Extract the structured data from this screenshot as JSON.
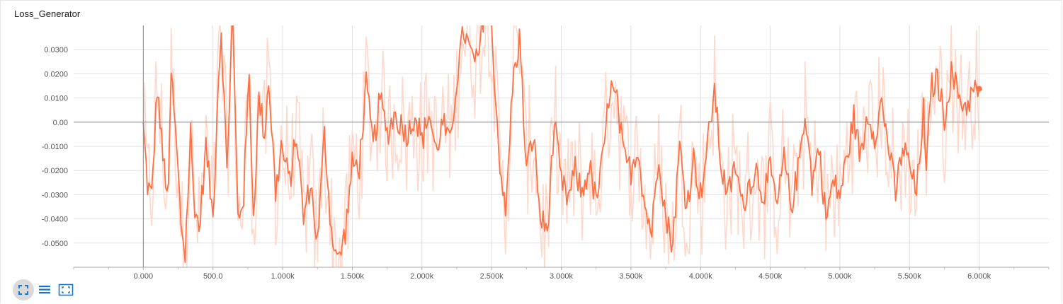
{
  "chart_data": {
    "type": "line",
    "title": "Loss_Generator",
    "xlabel": "",
    "ylabel": "",
    "xlim": [
      -500,
      6500
    ],
    "ylim": [
      -0.06,
      0.04
    ],
    "x_ticks": [
      0,
      500,
      1000,
      1500,
      2000,
      2500,
      3000,
      3500,
      4000,
      4500,
      5000,
      5500,
      6000
    ],
    "x_tick_labels": [
      "0.000",
      "500.0",
      "1.000k",
      "1.500k",
      "2.000k",
      "2.500k",
      "3.000k",
      "3.500k",
      "4.000k",
      "4.500k",
      "5.000k",
      "5.500k",
      "6.000k"
    ],
    "y_ticks": [
      0.03,
      0.02,
      0.01,
      0.0,
      -0.01,
      -0.02,
      -0.03,
      -0.04,
      -0.05
    ],
    "y_tick_labels": [
      "0.0300",
      "0.0200",
      "0.0100",
      "0.00",
      "-0.0100",
      "-0.0200",
      "-0.0300",
      "-0.0400",
      "-0.0500"
    ],
    "grid": true,
    "series": [
      {
        "smoothed_color": "#ff7043",
        "raw_color": "#ffd8cc",
        "x_start": 0,
        "x_step": 10,
        "end_value": 0.0138,
        "keypoints": [
          [
            0,
            -0.002
          ],
          [
            30,
            -0.026
          ],
          [
            60,
            -0.031
          ],
          [
            100,
            0.015
          ],
          [
            140,
            -0.015
          ],
          [
            180,
            -0.031
          ],
          [
            200,
            0.021
          ],
          [
            240,
            -0.012
          ],
          [
            270,
            -0.041
          ],
          [
            300,
            -0.055
          ],
          [
            340,
            -0.004
          ],
          [
            360,
            -0.03
          ],
          [
            400,
            -0.045
          ],
          [
            450,
            -0.01
          ],
          [
            500,
            -0.04
          ],
          [
            540,
            0.02
          ],
          [
            560,
            0.038
          ],
          [
            600,
            -0.02
          ],
          [
            640,
            0.045
          ],
          [
            680,
            -0.04
          ],
          [
            720,
            -0.03
          ],
          [
            760,
            0.02
          ],
          [
            790,
            -0.04
          ],
          [
            830,
            0.01
          ],
          [
            870,
            -0.005
          ],
          [
            900,
            0.018
          ],
          [
            950,
            -0.03
          ],
          [
            990,
            -0.01
          ],
          [
            1050,
            -0.025
          ],
          [
            1100,
            -0.005
          ],
          [
            1150,
            -0.04
          ],
          [
            1200,
            -0.025
          ],
          [
            1250,
            -0.05
          ],
          [
            1300,
            -0.005
          ],
          [
            1350,
            -0.045
          ],
          [
            1400,
            -0.058
          ],
          [
            1450,
            -0.045
          ],
          [
            1500,
            -0.018
          ],
          [
            1550,
            -0.018
          ],
          [
            1600,
            0.015
          ],
          [
            1650,
            -0.01
          ],
          [
            1700,
            0.01
          ],
          [
            1750,
            -0.005
          ],
          [
            1800,
            0.003
          ],
          [
            1900,
            -0.005
          ],
          [
            1950,
            0.004
          ],
          [
            2000,
            -0.008
          ],
          [
            2050,
            0.004
          ],
          [
            2100,
            -0.012
          ],
          [
            2150,
            0.0
          ],
          [
            2200,
            -0.01
          ],
          [
            2250,
            0.018
          ],
          [
            2300,
            0.038
          ],
          [
            2350,
            0.028
          ],
          [
            2400,
            0.024
          ],
          [
            2450,
            0.048
          ],
          [
            2500,
            0.039
          ],
          [
            2550,
            -0.01
          ],
          [
            2600,
            -0.04
          ],
          [
            2650,
            0.015
          ],
          [
            2700,
            0.035
          ],
          [
            2750,
            -0.02
          ],
          [
            2800,
            -0.005
          ],
          [
            2850,
            -0.04
          ],
          [
            2900,
            -0.045
          ],
          [
            2950,
            -0.001
          ],
          [
            3000,
            -0.025
          ],
          [
            3050,
            -0.032
          ],
          [
            3100,
            -0.02
          ],
          [
            3150,
            -0.03
          ],
          [
            3200,
            -0.018
          ],
          [
            3250,
            -0.033
          ],
          [
            3300,
            -0.015
          ],
          [
            3350,
            0.015
          ],
          [
            3400,
            0.008
          ],
          [
            3450,
            -0.015
          ],
          [
            3500,
            -0.02
          ],
          [
            3550,
            -0.01
          ],
          [
            3600,
            -0.035
          ],
          [
            3650,
            -0.045
          ],
          [
            3700,
            -0.012
          ],
          [
            3750,
            -0.04
          ],
          [
            3800,
            -0.05
          ],
          [
            3850,
            -0.01
          ],
          [
            3900,
            -0.035
          ],
          [
            3950,
            -0.015
          ],
          [
            4000,
            -0.03
          ],
          [
            4050,
            -0.01
          ],
          [
            4100,
            0.014
          ],
          [
            4150,
            -0.02
          ],
          [
            4200,
            -0.03
          ],
          [
            4250,
            -0.018
          ],
          [
            4300,
            -0.035
          ],
          [
            4350,
            -0.025
          ],
          [
            4400,
            -0.02
          ],
          [
            4450,
            -0.03
          ],
          [
            4500,
            -0.02
          ],
          [
            4550,
            -0.035
          ],
          [
            4600,
            -0.015
          ],
          [
            4650,
            -0.035
          ],
          [
            4700,
            -0.02
          ],
          [
            4750,
            0.005
          ],
          [
            4800,
            -0.025
          ],
          [
            4850,
            -0.01
          ],
          [
            4900,
            -0.04
          ],
          [
            4950,
            -0.025
          ],
          [
            5000,
            -0.03
          ],
          [
            5050,
            -0.015
          ],
          [
            5100,
            0.002
          ],
          [
            5150,
            -0.015
          ],
          [
            5200,
            0.004
          ],
          [
            5250,
            -0.005
          ],
          [
            5300,
            0.008
          ],
          [
            5350,
            -0.01
          ],
          [
            5400,
            -0.03
          ],
          [
            5450,
            -0.01
          ],
          [
            5500,
            -0.018
          ],
          [
            5550,
            -0.03
          ],
          [
            5600,
            0.005
          ],
          [
            5620,
            -0.025
          ],
          [
            5650,
            0.014
          ],
          [
            5700,
            0.018
          ],
          [
            5750,
            0.002
          ],
          [
            5800,
            0.02
          ],
          [
            5850,
            0.012
          ],
          [
            5900,
            0.006
          ],
          [
            5950,
            0.012
          ],
          [
            6000,
            0.0138
          ]
        ]
      }
    ]
  },
  "toolbar": {
    "icons": [
      "expand-icon",
      "list-icon",
      "fit-domain-icon"
    ],
    "active_color": "#dadada",
    "icon_color": "#1976d2"
  }
}
